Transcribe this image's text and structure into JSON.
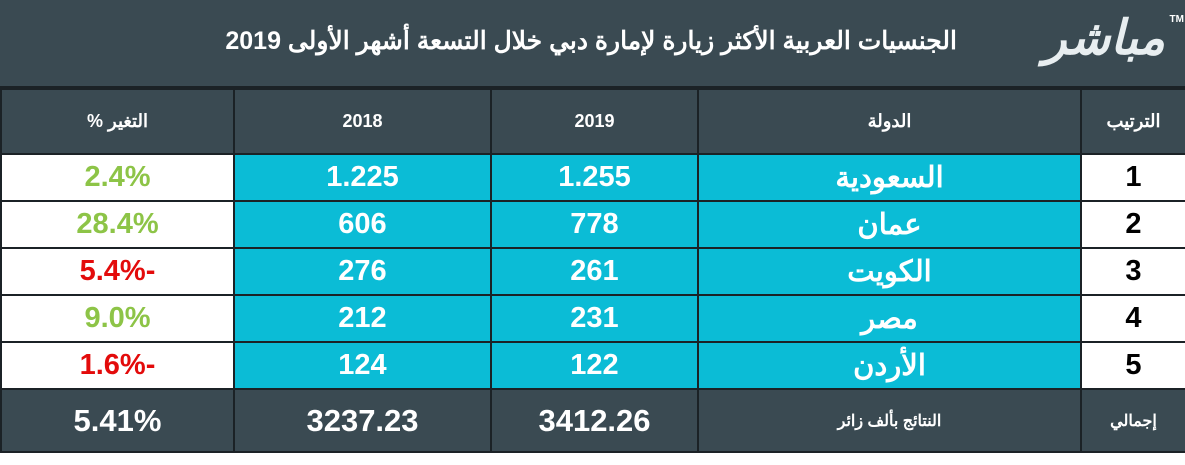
{
  "header": {
    "logo": "مباشر",
    "logo_mark": "TM",
    "title": "الجنسيات العربية الأكثر زيارة لإمارة دبي خلال التسعة أشهر الأولى 2019"
  },
  "table": {
    "columns": [
      "الترتيب",
      "الدولة",
      "2019",
      "2018",
      "التغير %"
    ],
    "rows": [
      [
        "1",
        "السعودية",
        "1.255",
        "1.225",
        "2.4%"
      ],
      [
        "2",
        "عمان",
        "778",
        "606",
        "28.4%"
      ],
      [
        "3",
        "الكويت",
        "261",
        "276",
        "-5.4%"
      ],
      [
        "4",
        "مصر",
        "231",
        "212",
        "9.0%"
      ],
      [
        "5",
        "الأردن",
        "122",
        "124",
        "-1.6%"
      ]
    ],
    "total": [
      "إجمالي",
      "النتائج بألف زائر",
      "3412.26",
      "3237.23",
      "5.41%"
    ]
  }
}
